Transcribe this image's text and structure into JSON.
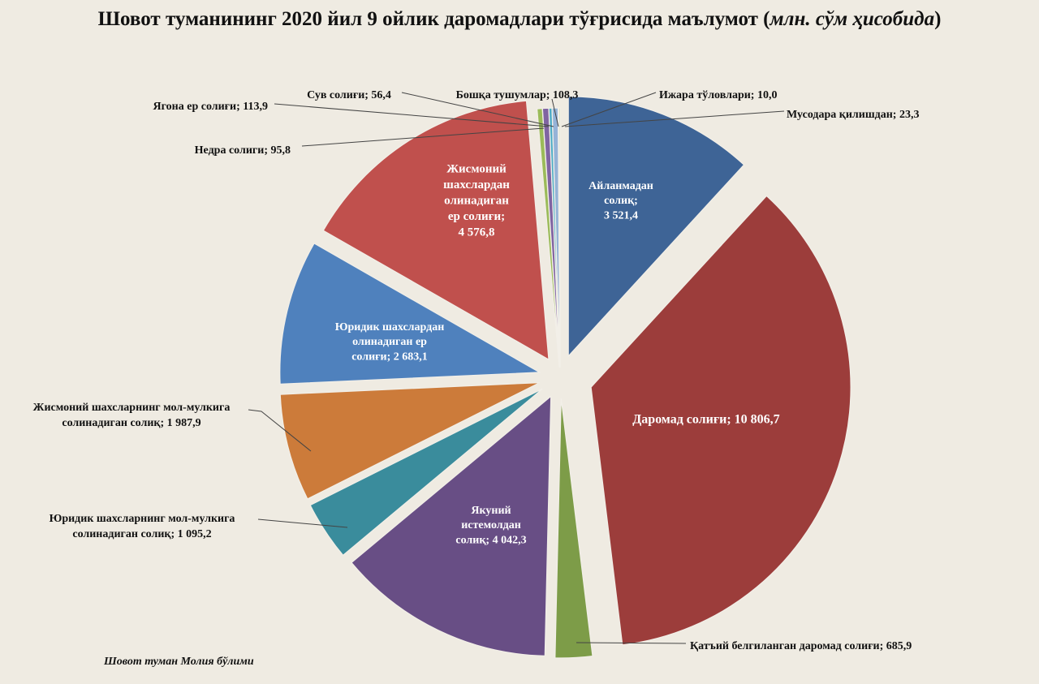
{
  "title": {
    "main": "Шовот туманининг 2020 йил 9 ойлик даромадлари тўғрисида маълумот",
    "unit_open": " (",
    "unit": "млн. сўм ҳисобида",
    "unit_close": ")"
  },
  "footer": "Шовот туман Молия бўлими",
  "chart_data": {
    "type": "pie",
    "title": "Шовот туманининг 2020 йил 9 ойлик даромадлари тўғрисида маълумот (млн. сўм ҳисобида)",
    "unit": "млн. сўм",
    "slices": [
      {
        "label": "Айланмадан солиқ",
        "value": 3521.4,
        "value_text": "3 521,4",
        "color": "#3e6496"
      },
      {
        "label": "Даромад солиғи",
        "value": 10806.7,
        "value_text": "10 806,7",
        "color": "#9c3d3b"
      },
      {
        "label": "Қатъий белгиланган даромад солиғи",
        "value": 685.9,
        "value_text": "685,9",
        "color": "#7d9c48"
      },
      {
        "label": "Якуний истемолдан солиқ",
        "value": 4042.3,
        "value_text": "4 042,3",
        "color": "#684e85"
      },
      {
        "label": "Юридик шахсларнинг мол-мулкига солинадиган солиқ",
        "value": 1095.2,
        "value_text": "1 095,2",
        "color": "#3a8c9c"
      },
      {
        "label": "Жисмоний шахсларнинг мол-мулкига солинадиган солиқ",
        "value": 1987.9,
        "value_text": "1 987,9",
        "color": "#cc7b3a"
      },
      {
        "label": "Юридик шахслардан олинадиган ер солиғи",
        "value": 2683.1,
        "value_text": "2 683,1",
        "color": "#4f81bd"
      },
      {
        "label": "Жисмоний шахслардан олинадиган ер солиғи",
        "value": 4576.8,
        "value_text": "4 576,8",
        "color": "#c0504d"
      },
      {
        "label": "Недра солиги",
        "value": 95.8,
        "value_text": "95,8",
        "color": "#9bbb59"
      },
      {
        "label": "Ягона ер солиғи",
        "value": 113.9,
        "value_text": "113,9",
        "color": "#8064a2"
      },
      {
        "label": "Сув солиғи",
        "value": 56.4,
        "value_text": "56,4",
        "color": "#4bacc6"
      },
      {
        "label": "Бошқа тушумлар",
        "value": 108.3,
        "value_text": "108,3",
        "color": "#95b3d7"
      },
      {
        "label": "Ижара тўловлари",
        "value": 10.0,
        "value_text": "10,0",
        "color": "#d99694"
      },
      {
        "label": "Мусодара қилишдан",
        "value": 23.3,
        "value_text": "23,3",
        "color": "#c3d69b"
      }
    ],
    "inside_labels": [
      [
        "Айланмадан",
        "солиқ;",
        "3 521,4"
      ],
      [
        "Даромад солиғи; 10 806,7"
      ],
      [],
      [
        "Якуний",
        "истемолдан",
        "солиқ; 4 042,3"
      ],
      [],
      [],
      [
        "Юридик шахслардан",
        "олинадиган ер",
        "солиғи; 2 683,1"
      ],
      [
        "Жисмоний",
        "шахслардан",
        "олинадиган",
        "ер солиғи;",
        "4 576,8"
      ]
    ],
    "outside_labels": [
      [],
      [],
      [
        "Қатъий белгиланган даромад солиғи; 685,9"
      ],
      [],
      [
        "Юридик шахсларнинг мол-мулкига",
        "солинадиган солиқ; 1 095,2"
      ],
      [
        "Жисмоний шахсларнинг мол-мулкига",
        "солинадиган солиқ; 1 987,9"
      ],
      [],
      [],
      [
        "Недра солиги;  95,8"
      ],
      [
        "Ягона ер солиғи;  113,9"
      ],
      [
        "Сув солиғи; 56,4"
      ],
      [
        "Бошқа тушумлар; 108,3"
      ],
      [
        "Ижара тўловлари;  10,0"
      ],
      [
        "Мусодара қилишдан; 23,3"
      ]
    ],
    "legend": "none"
  }
}
